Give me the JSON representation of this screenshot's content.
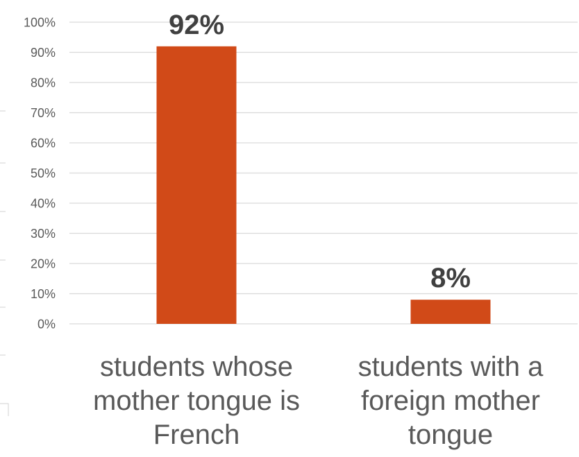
{
  "chart_data": {
    "type": "bar",
    "title": "",
    "xlabel": "",
    "ylabel": "",
    "ylim": [
      0,
      100
    ],
    "yticks": [
      0,
      10,
      20,
      30,
      40,
      50,
      60,
      70,
      80,
      90,
      100
    ],
    "ytick_format": "{v}%",
    "grid": true,
    "legend": "none",
    "categories": [
      [
        "students whose",
        "mother tongue is",
        "French"
      ],
      [
        "students with a",
        "foreign mother",
        "tongue"
      ]
    ],
    "values": [
      92,
      8
    ],
    "data_labels": [
      "92%",
      "8%"
    ],
    "bar_color": "#d14a18"
  }
}
